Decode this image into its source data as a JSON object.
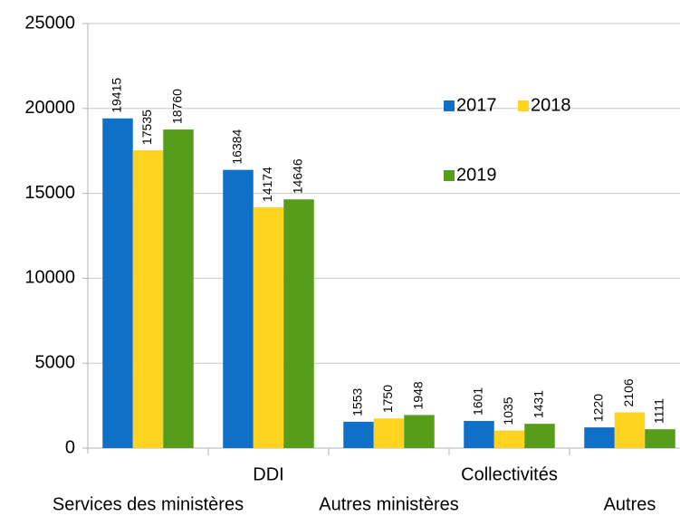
{
  "chart_data": {
    "type": "bar",
    "categories": [
      "Services des ministères",
      "DDI",
      "Autres ministères",
      "Collectivités",
      "Autres"
    ],
    "series": [
      {
        "name": "2017",
        "color": "#0f70c8",
        "values": [
          19415,
          16384,
          1553,
          1601,
          1220
        ]
      },
      {
        "name": "2018",
        "color": "#ffd320",
        "values": [
          17535,
          14174,
          1750,
          1035,
          2106
        ]
      },
      {
        "name": "2019",
        "color": "#579d1c",
        "values": [
          18760,
          14646,
          1948,
          1431,
          1111
        ]
      }
    ],
    "ylim": [
      0,
      25000
    ],
    "yticks": [
      0,
      5000,
      10000,
      15000,
      20000,
      25000
    ],
    "grid": true
  }
}
